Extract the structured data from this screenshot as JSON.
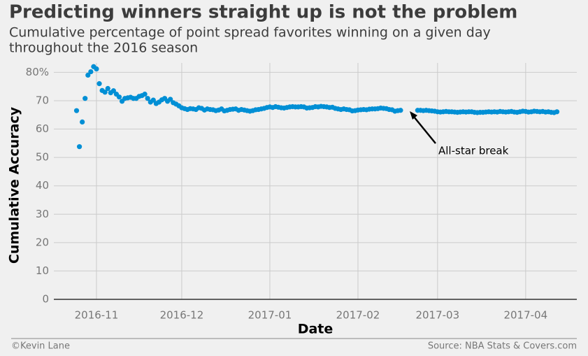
{
  "chart_data": {
    "type": "scatter",
    "title": "Predicting winners straight up is not the problem",
    "subtitle": [
      "Cumulative percentage of point spread favorites winning on a given day",
      "throughout the 2016 season"
    ],
    "x_label": "Date",
    "y_label": "Cumulative Accuracy",
    "annotation": "All-star break",
    "credit": "©Kevin Lane",
    "source": "Source: NBA Stats & Covers.com",
    "color": "#008fd5",
    "grid": true,
    "categories": [
      null,
      null,
      null,
      null,
      null,
      null,
      null,
      null,
      null,
      null,
      null,
      null,
      null,
      null,
      null,
      "2016-11",
      null,
      null,
      null,
      null,
      null,
      null,
      null,
      null,
      null,
      null,
      null,
      null,
      null,
      null,
      null,
      null,
      null,
      null,
      null,
      null,
      null,
      null,
      null,
      null,
      null,
      null,
      null,
      null,
      null,
      "2016-12",
      null,
      null,
      null,
      null,
      null,
      null,
      null,
      null,
      null,
      null,
      null,
      null,
      null,
      null,
      null,
      null,
      null,
      null,
      null,
      null,
      null,
      null,
      null,
      null,
      null,
      null,
      null,
      null,
      null,
      null,
      "2017-01",
      null,
      null,
      null,
      null,
      null,
      null,
      null,
      null,
      null,
      null,
      null,
      null,
      null,
      null,
      null,
      null,
      null,
      null,
      null,
      null,
      null,
      null,
      null,
      null,
      null,
      null,
      null,
      null,
      null,
      null,
      "2017-02",
      null,
      null,
      null,
      null,
      null,
      null,
      null,
      null,
      null,
      null,
      null,
      null,
      null,
      null,
      null,
      null,
      null,
      null,
      null,
      null,
      null,
      null,
      null,
      null,
      null,
      null,
      null,
      "2017-03",
      null,
      null,
      null,
      null,
      null,
      null,
      null,
      null,
      null,
      null,
      null,
      null,
      null,
      null,
      null,
      null,
      null,
      null,
      null,
      null,
      null,
      null,
      null,
      null,
      null,
      null,
      null,
      null,
      null,
      null,
      "2017-04",
      null,
      null,
      null,
      null,
      null,
      null,
      null,
      null,
      null,
      null,
      null,
      null,
      null,
      null,
      null,
      null,
      null,
      null
    ],
    "values": [
      null,
      null,
      null,
      null,
      null,
      null,
      null,
      null,
      66.5,
      53.8,
      62.5,
      70.8,
      79,
      80.2,
      82,
      81.2,
      76,
      73.6,
      73,
      74.3,
      72.8,
      73.5,
      72.3,
      71.3,
      69.8,
      70.8,
      71,
      71.2,
      70.8,
      70.8,
      71.5,
      71.8,
      72.3,
      70.8,
      69.5,
      70.2,
      69,
      69.5,
      70.3,
      70.8,
      69.8,
      70.5,
      69.3,
      68.8,
      68.2,
      67.5,
      67.2,
      66.9,
      67.2,
      67.1,
      66.9,
      67.5,
      67.3,
      66.7,
      67.1,
      66.9,
      66.8,
      66.5,
      66.7,
      67.1,
      66.4,
      66.6,
      66.9,
      67,
      67.1,
      66.6,
      66.9,
      66.7,
      66.5,
      66.3,
      66.5,
      66.8,
      66.9,
      67.1,
      67.3,
      67.6,
      67.8,
      67.6,
      67.9,
      67.7,
      67.5,
      67.4,
      67.6,
      67.8,
      67.9,
      67.8,
      67.8,
      67.9,
      67.8,
      67.4,
      67.5,
      67.6,
      67.9,
      67.8,
      68,
      67.9,
      67.8,
      67.6,
      67.7,
      67.3,
      67.1,
      66.9,
      67.1,
      66.9,
      66.8,
      66.4,
      66.5,
      66.7,
      66.8,
      66.9,
      66.8,
      67,
      67.1,
      67.1,
      67.2,
      67.4,
      67.3,
      67.2,
      66.9,
      66.8,
      66.3,
      66.5,
      66.6,
      null,
      null,
      null,
      null,
      null,
      66.6,
      66.6,
      66.5,
      66.6,
      66.5,
      66.4,
      66.3,
      66.1,
      66,
      66.1,
      66.2,
      66.1,
      66.1,
      66,
      65.9,
      66,
      66.1,
      66,
      66.1,
      66.1,
      65.9,
      65.8,
      65.9,
      65.9,
      66,
      66.1,
      66,
      66.1,
      66,
      66.2,
      66.1,
      66,
      66.1,
      66.2,
      66,
      65.9,
      66.1,
      66.3,
      66.2,
      66,
      66.1,
      66.3,
      66.2,
      66.1,
      66.2,
      66,
      66.1,
      65.9,
      65.8,
      66.1,
      null,
      null,
      null,
      null,
      null,
      null,
      null
    ],
    "ylim": [
      0,
      83.3
    ],
    "yticks": [
      0,
      10,
      20,
      30,
      40,
      50,
      60,
      70,
      {
        "value": 80,
        "label": "80%"
      }
    ]
  }
}
